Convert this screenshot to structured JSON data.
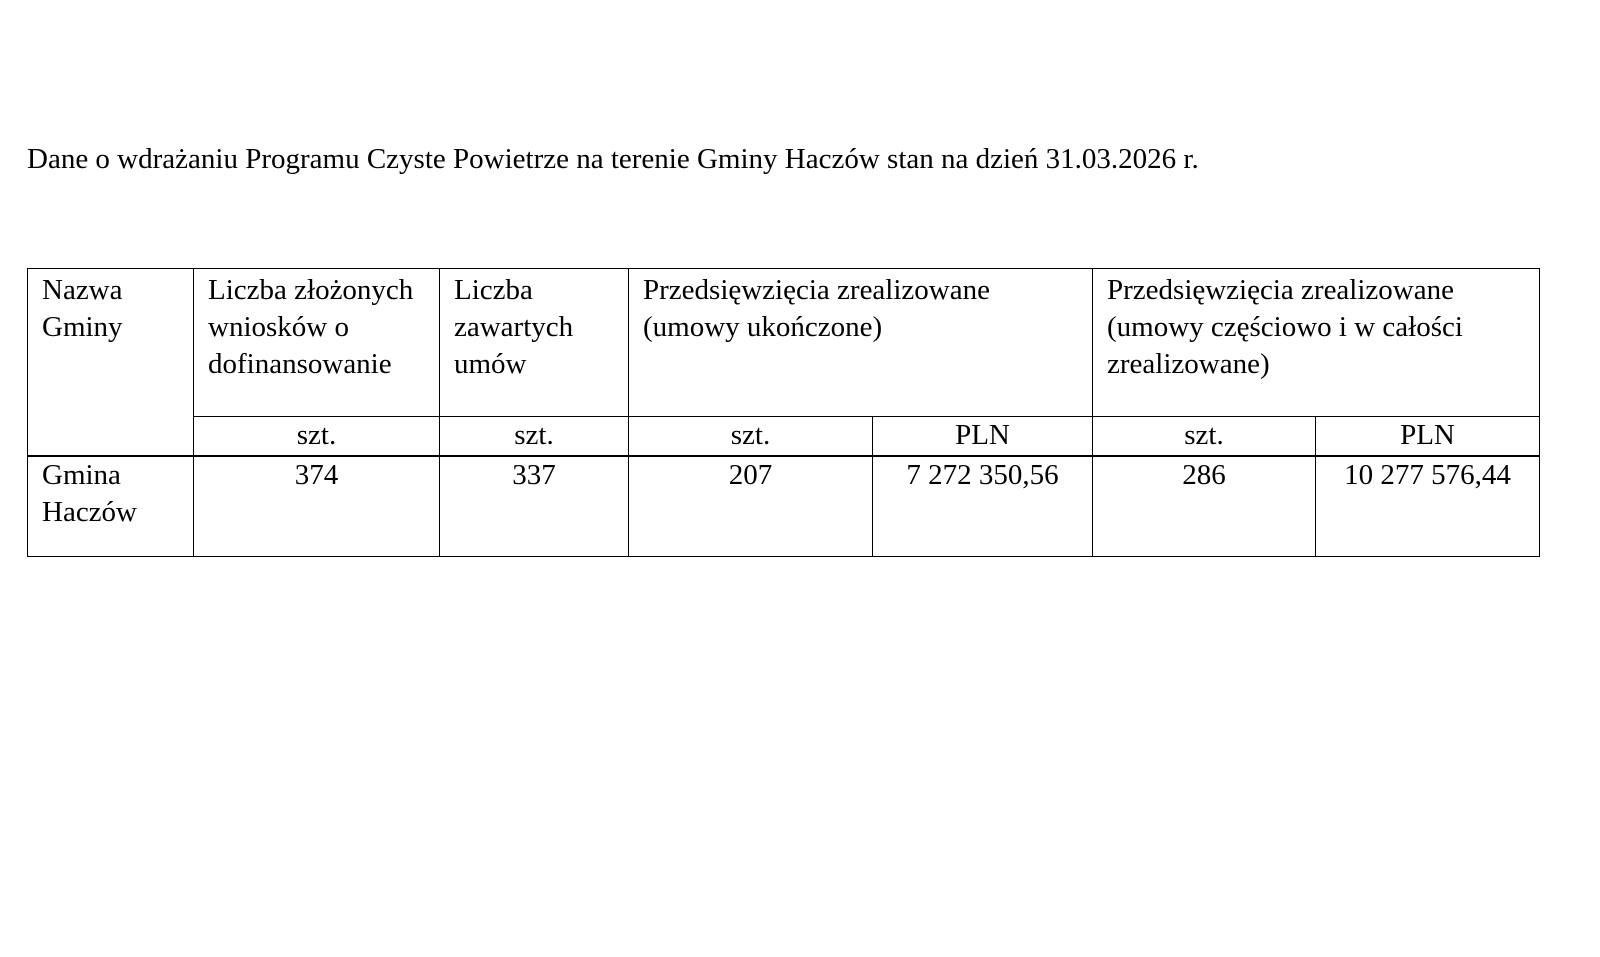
{
  "title": "Dane o wdrażaniu Programu Czyste Powietrze na terenie Gminy Haczów stan na dzień 31.03.2026 r.",
  "table": {
    "headers": {
      "gmina": "Nazwa Gminy",
      "wnioski": "Liczba złożonych wniosków o dofinansowanie",
      "umowy": "Liczba zawartych umów",
      "ukonczone": "Przedsięwzięcia zrealizowane (umowy ukończone)",
      "czesciowo": "Przedsięwzięcia zrealizowane (umowy częściowo i w całości zrealizowane)"
    },
    "units": [
      "szt.",
      "szt.",
      "szt.",
      "PLN",
      "szt.",
      "PLN"
    ],
    "rows": [
      {
        "gmina": "Gmina Haczów",
        "values": [
          "374",
          "337",
          "207",
          "7 272 350,56",
          "286",
          "10 277 576,44"
        ]
      }
    ]
  }
}
